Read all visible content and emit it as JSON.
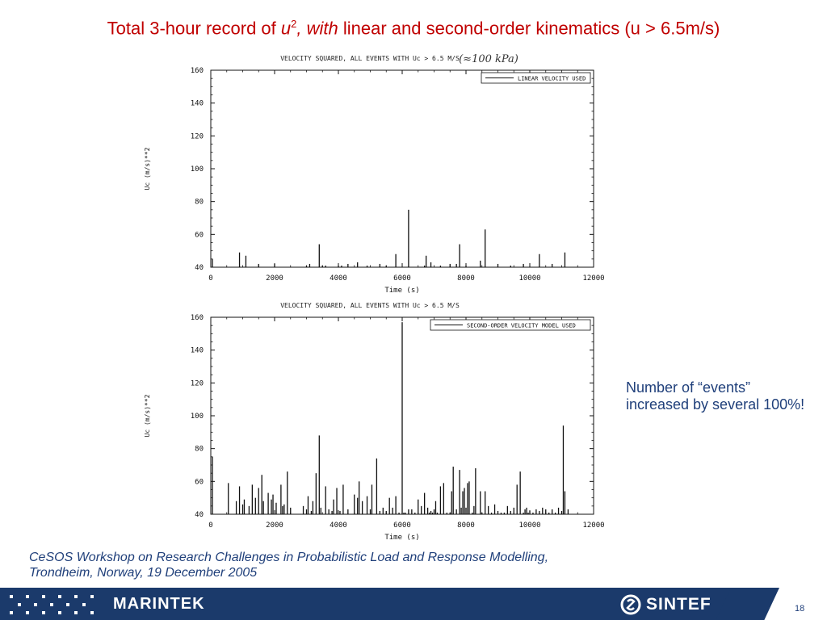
{
  "slide": {
    "title_prefix": "Total  3-hour record of ",
    "title_var": "u",
    "title_sup": "2",
    "title_comma": ", ",
    "title_with": "with",
    "title_suffix": " linear and second-order kinematics (u > 6.5m/s)",
    "note": "Number of “events” increased by several 100%!",
    "footer_line1": "CeSOS Workshop on Research Challenges in Probabilistic Load and Response Modelling,",
    "footer_line2": "Trondheim, Norway, 19 December 2005",
    "logo_left": "MARINTEK",
    "logo_right": "SINTEF",
    "page_number": "18"
  },
  "colors": {
    "title": "#c00000",
    "text": "#1f3f7a",
    "bar": "#1b3a6b"
  },
  "chart_data": [
    {
      "type": "bar",
      "title": "VELOCITY SQUARED, ALL EVENTS WITH Uc > 6.5 M/S",
      "annotation": "(≈100 kPa)",
      "xlabel": "Time (s)",
      "ylabel": "Uc (m/s)**2",
      "xlim": [
        0,
        12000
      ],
      "ylim": [
        40,
        160
      ],
      "xticks": [
        0,
        2000,
        4000,
        6000,
        8000,
        10000,
        12000
      ],
      "yticks": [
        40,
        60,
        80,
        100,
        120,
        140,
        160
      ],
      "legend": "LINEAR VELOCITY USED",
      "legend_position": "top-right",
      "series": [
        {
          "x": [
            50,
            900,
            1100,
            1500,
            2000,
            3000,
            3100,
            3400,
            3500,
            3600,
            4000,
            4100,
            4300,
            4600,
            4900,
            5300,
            5500,
            5800,
            6200,
            6700,
            6750,
            6900,
            7200,
            7500,
            7700,
            7800,
            8000,
            8450,
            8600,
            9000,
            9400,
            9800,
            10300,
            10700,
            11100
          ],
          "y": [
            45,
            49,
            47,
            42,
            42,
            41,
            42,
            54,
            41,
            41,
            41,
            41,
            42,
            43,
            41,
            42,
            41,
            48,
            75,
            41,
            47,
            43,
            41,
            42,
            42,
            54,
            41,
            44,
            63,
            42,
            41,
            42,
            48,
            42,
            49
          ]
        }
      ]
    },
    {
      "type": "bar",
      "title": "VELOCITY SQUARED, ALL EVENTS WITH Uc > 6.5 M/S",
      "xlabel": "Time (s)",
      "ylabel": "Uc (m/s)**2",
      "xlim": [
        0,
        12000
      ],
      "ylim": [
        40,
        160
      ],
      "xticks": [
        0,
        2000,
        4000,
        6000,
        8000,
        10000,
        12000
      ],
      "yticks": [
        40,
        60,
        80,
        100,
        120,
        140,
        160
      ],
      "legend": "SECOND-ORDER VELOCITY MODEL USED",
      "legend_position": "top-right",
      "series": [
        {
          "x": [
            50,
            550,
            800,
            900,
            1000,
            1050,
            1200,
            1300,
            1400,
            1500,
            1600,
            1650,
            1800,
            1900,
            1950,
            2050,
            2200,
            2250,
            2300,
            2400,
            2500,
            2900,
            3000,
            3050,
            3150,
            3200,
            3300,
            3400,
            3450,
            3600,
            3700,
            3800,
            3850,
            3950,
            4050,
            4150,
            4300,
            4500,
            4600,
            4650,
            4750,
            4900,
            5000,
            5050,
            5200,
            5300,
            5400,
            5500,
            5600,
            5700,
            5800,
            5900,
            6000,
            6050,
            6100,
            6200,
            6300,
            6400,
            6500,
            6600,
            6700,
            6800,
            6850,
            6900,
            6950,
            7000,
            7050,
            7100,
            7200,
            7300,
            7400,
            7500,
            7550,
            7600,
            7700,
            7800,
            7850,
            7900,
            7950,
            8000,
            8050,
            8100,
            8200,
            8250,
            8300,
            8450,
            8500,
            8600,
            8700,
            8800,
            8900,
            9000,
            9100,
            9200,
            9300,
            9400,
            9500,
            9600,
            9700,
            9800,
            9850,
            9900,
            9950,
            10000,
            10100,
            10200,
            10300,
            10400,
            10500,
            10600,
            10700,
            10800,
            10900,
            11000,
            11050,
            11100,
            11200
          ],
          "y": [
            75,
            59,
            48,
            57,
            46,
            49,
            45,
            58,
            50,
            56,
            64,
            48,
            53,
            49,
            52,
            47,
            58,
            45,
            46,
            66,
            44,
            45,
            43,
            51,
            42,
            48,
            65,
            88,
            44,
            57,
            43,
            42,
            49,
            56,
            42,
            58,
            43,
            52,
            50,
            60,
            48,
            51,
            43,
            58,
            74,
            42,
            44,
            42,
            50,
            44,
            51,
            41,
            157,
            41,
            41,
            43,
            43,
            41,
            49,
            45,
            53,
            44,
            41,
            42,
            41,
            43,
            48,
            41,
            57,
            59,
            41,
            41,
            54,
            69,
            43,
            67,
            44,
            54,
            56,
            44,
            59,
            60,
            41,
            45,
            68,
            54,
            41,
            54,
            45,
            41,
            46,
            42,
            41,
            41,
            45,
            42,
            44,
            58,
            66,
            41,
            43,
            44,
            41,
            42,
            41,
            43,
            42,
            44,
            43,
            41,
            43,
            41,
            44,
            42,
            94,
            54,
            43
          ]
        }
      ]
    }
  ]
}
